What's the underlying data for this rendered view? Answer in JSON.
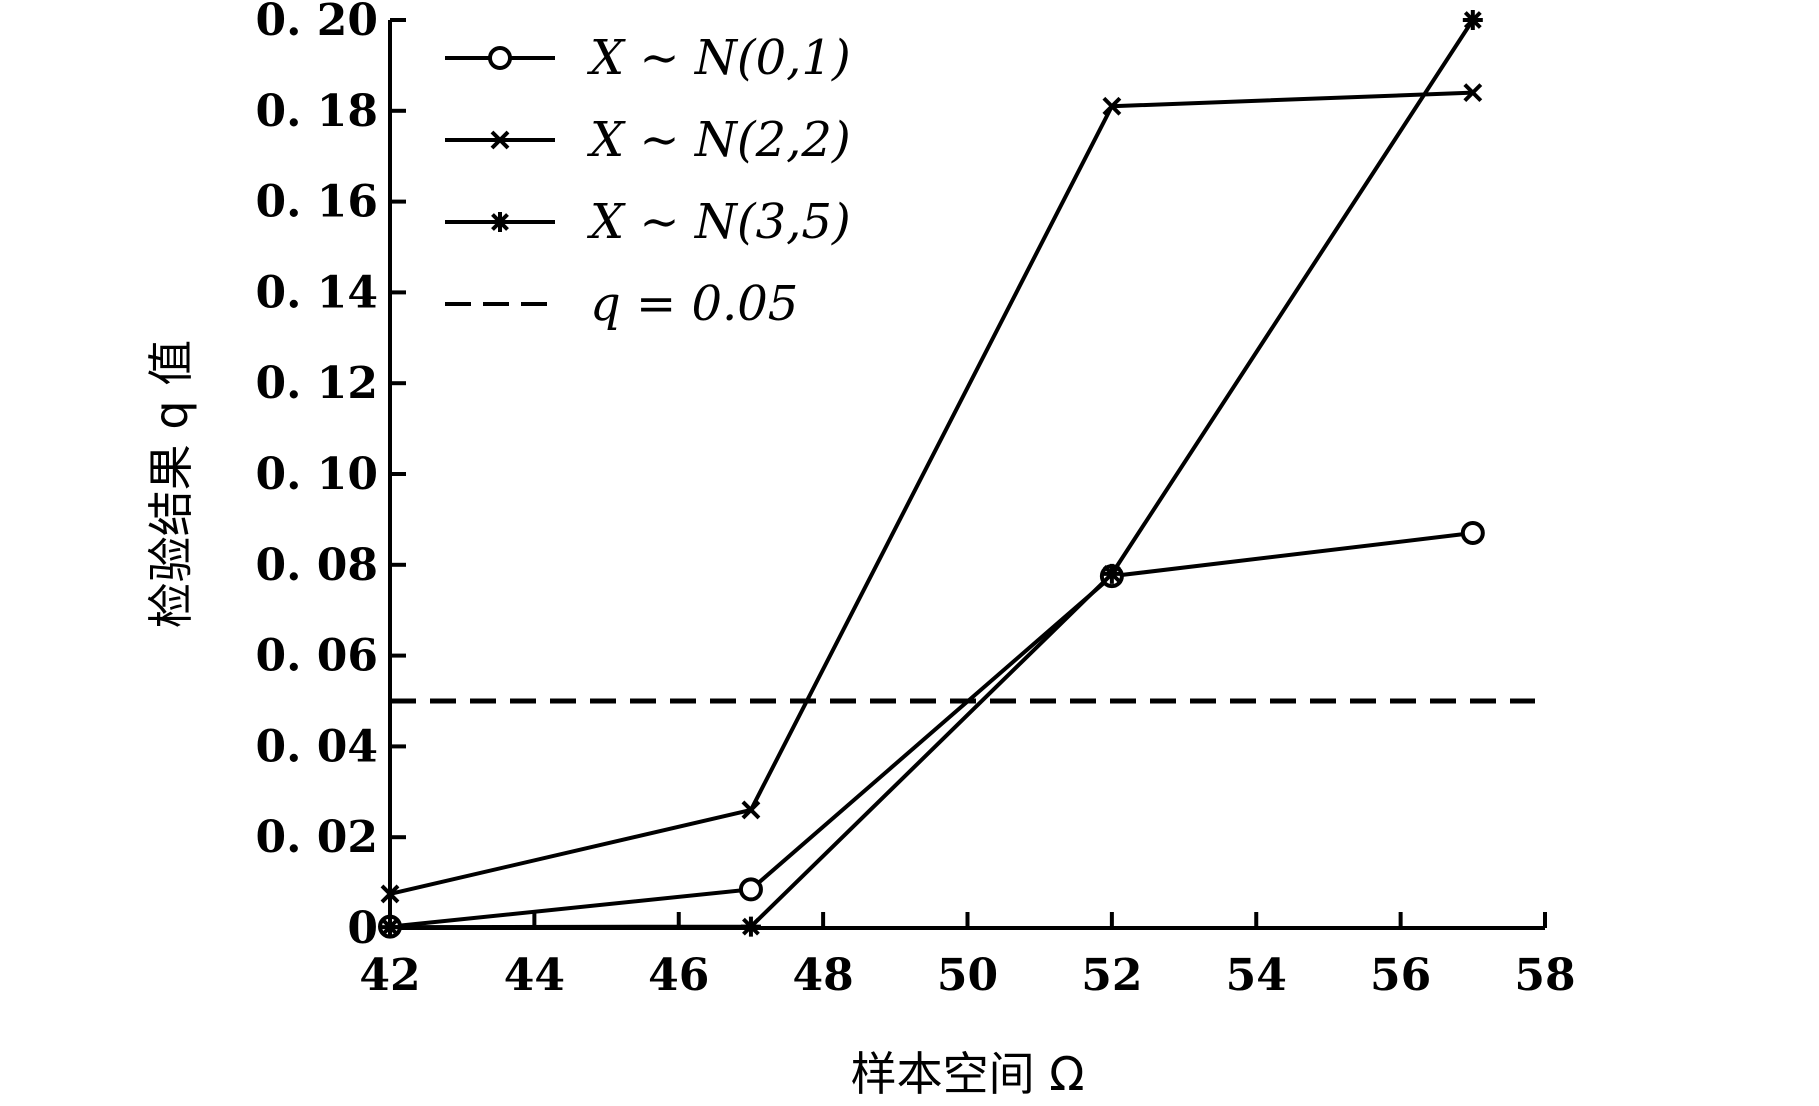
{
  "chart_data": {
    "type": "line",
    "xlabel": "样本空间 Ω",
    "ylabel": "检验结果 q 值",
    "xlim": [
      42,
      58
    ],
    "ylim": [
      0,
      0.2
    ],
    "xticks": [
      42,
      44,
      46,
      48,
      50,
      52,
      54,
      56,
      58
    ],
    "yticks": [
      0,
      0.02,
      0.04,
      0.06,
      0.08,
      0.1,
      0.12,
      0.14,
      0.16,
      0.18,
      0.2
    ],
    "ytick_labels": [
      "0",
      "0. 02",
      "0. 04",
      "0. 06",
      "0. 08",
      "0. 10",
      "0. 12",
      "0. 14",
      "0. 16",
      "0. 18",
      "0. 20"
    ],
    "grid": false,
    "legend_position": "top-left",
    "series": [
      {
        "name": "X ∼ N(0,1)",
        "marker": "circle",
        "x": [
          42,
          47,
          52,
          57
        ],
        "y": [
          0.0003,
          0.0085,
          0.0775,
          0.087
        ]
      },
      {
        "name": "X ∼ N(2,2)",
        "marker": "x",
        "x": [
          42,
          47,
          52,
          57
        ],
        "y": [
          0.0075,
          0.026,
          0.181,
          0.184
        ]
      },
      {
        "name": "X ∼ N(3,5)",
        "marker": "star",
        "x": [
          42,
          47,
          52,
          57
        ],
        "y": [
          0.0002,
          0.0003,
          0.078,
          0.2
        ]
      }
    ],
    "reference_lines": [
      {
        "name": "q = 0.05",
        "y": 0.05,
        "style": "dashed"
      }
    ]
  }
}
